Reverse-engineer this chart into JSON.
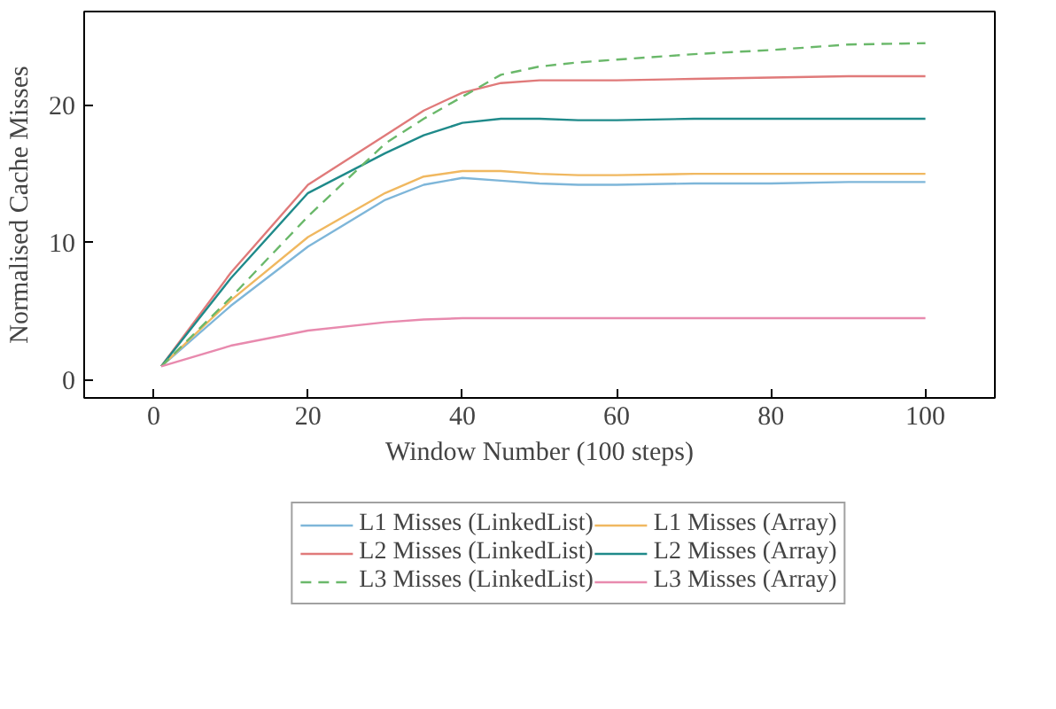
{
  "chart_data": {
    "type": "line",
    "xlabel": "Window Number (100 steps)",
    "ylabel": "Normalised Cache Misses",
    "x": [
      1,
      10,
      20,
      30,
      35,
      40,
      45,
      50,
      55,
      60,
      70,
      80,
      90,
      100
    ],
    "xlim": [
      -9,
      109
    ],
    "ylim": [
      -1.3,
      26.8
    ],
    "xticks": [
      0,
      20,
      40,
      60,
      80,
      100
    ],
    "yticks": [
      0,
      10,
      20
    ],
    "grid": false,
    "legend": "bottom",
    "marker": "none",
    "series": [
      {
        "name": "L1 Misses (LinkedList)",
        "color": "#7eb6d9",
        "line_style": "solid",
        "values": [
          1,
          5.4,
          9.7,
          13.1,
          14.2,
          14.7,
          14.5,
          14.3,
          14.2,
          14.2,
          14.3,
          14.3,
          14.4,
          14.4
        ]
      },
      {
        "name": "L1 Misses (Array)",
        "color": "#f0b860",
        "line_style": "solid",
        "values": [
          1,
          5.8,
          10.4,
          13.6,
          14.8,
          15.2,
          15.2,
          15.0,
          14.9,
          14.9,
          15.0,
          15.0,
          15.0,
          15.0
        ]
      },
      {
        "name": "L2 Misses (LinkedList)",
        "color": "#e07a7a",
        "line_style": "solid",
        "values": [
          1,
          7.8,
          14.2,
          17.8,
          19.6,
          20.9,
          21.6,
          21.8,
          21.8,
          21.8,
          21.9,
          22.0,
          22.1,
          22.1
        ]
      },
      {
        "name": "L2 Misses (Array)",
        "color": "#1f8a8a",
        "line_style": "solid",
        "values": [
          1,
          7.4,
          13.6,
          16.5,
          17.8,
          18.7,
          19.0,
          19.0,
          18.9,
          18.9,
          19.0,
          19.0,
          19.0,
          19.0
        ]
      },
      {
        "name": "L3 Misses (LinkedList)",
        "color": "#6ab86a",
        "line_style": "dashed",
        "values": [
          1,
          6.0,
          11.9,
          17.2,
          19.0,
          20.6,
          22.2,
          22.8,
          23.1,
          23.3,
          23.7,
          24.0,
          24.4,
          24.5
        ]
      },
      {
        "name": "L3 Misses (Array)",
        "color": "#e88aae",
        "line_style": "solid",
        "values": [
          1,
          2.5,
          3.6,
          4.2,
          4.4,
          4.5,
          4.5,
          4.5,
          4.5,
          4.5,
          4.5,
          4.5,
          4.5,
          4.5
        ]
      }
    ]
  }
}
